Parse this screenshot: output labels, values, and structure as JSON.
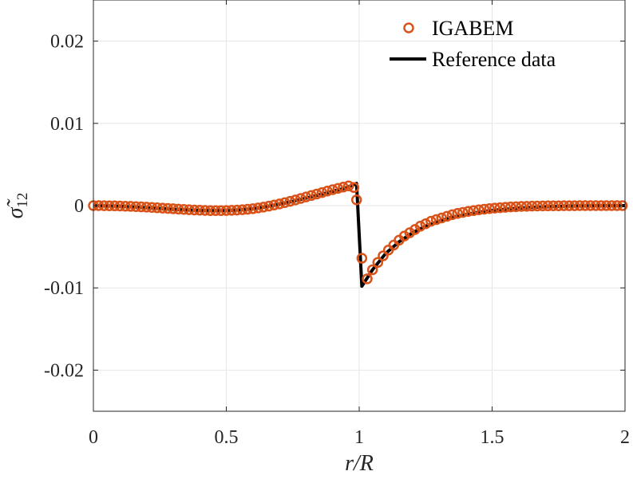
{
  "chart_data": {
    "type": "line",
    "xlabel": "r/R",
    "ylabel": "σ̃12",
    "xlim": [
      0,
      2
    ],
    "ylim": [
      -0.025,
      0.025
    ],
    "xticks": [
      0,
      0.5,
      1,
      1.5,
      2
    ],
    "xtick_labels": [
      "0",
      "0.5",
      "1",
      "1.5",
      "2"
    ],
    "yticks": [
      -0.02,
      -0.01,
      0,
      0.01,
      0.02
    ],
    "ytick_labels": [
      "-0.02",
      "-0.01",
      "0",
      "0.01",
      "0.02"
    ],
    "grid": true,
    "legend_position": "top-right",
    "series": [
      {
        "name": "IGABEM",
        "style": "markers",
        "color": "#D95319",
        "x": [
          0.0,
          0.02,
          0.04,
          0.06,
          0.08,
          0.1,
          0.12,
          0.14,
          0.16,
          0.18,
          0.2,
          0.22,
          0.24,
          0.26,
          0.28,
          0.3,
          0.32,
          0.34,
          0.36,
          0.38,
          0.4,
          0.42,
          0.44,
          0.46,
          0.48,
          0.5,
          0.52,
          0.54,
          0.56,
          0.58,
          0.6,
          0.62,
          0.64,
          0.66,
          0.68,
          0.7,
          0.72,
          0.74,
          0.76,
          0.78,
          0.8,
          0.82,
          0.84,
          0.86,
          0.88,
          0.9,
          0.92,
          0.94,
          0.96,
          0.98,
          0.99,
          1.01,
          1.03,
          1.05,
          1.07,
          1.09,
          1.11,
          1.13,
          1.15,
          1.17,
          1.19,
          1.21,
          1.23,
          1.25,
          1.27,
          1.29,
          1.31,
          1.33,
          1.35,
          1.37,
          1.39,
          1.41,
          1.43,
          1.45,
          1.47,
          1.49,
          1.51,
          1.53,
          1.55,
          1.57,
          1.59,
          1.61,
          1.63,
          1.65,
          1.67,
          1.69,
          1.71,
          1.73,
          1.75,
          1.77,
          1.79,
          1.81,
          1.83,
          1.85,
          1.87,
          1.89,
          1.91,
          1.93,
          1.95,
          1.97,
          1.99
        ],
        "y": [
          0.0,
          0.0,
          -1e-05,
          -2e-05,
          -3e-05,
          -5e-05,
          -7e-05,
          -9e-05,
          -0.00012,
          -0.00015,
          -0.00018,
          -0.00022,
          -0.00026,
          -0.0003,
          -0.00034,
          -0.00038,
          -0.00042,
          -0.00046,
          -0.0005,
          -0.00053,
          -0.00056,
          -0.00058,
          -0.0006,
          -0.0006,
          -0.0006,
          -0.00059,
          -0.00057,
          -0.00054,
          -0.0005,
          -0.00044,
          -0.00037,
          -0.00028,
          -0.00018,
          -6e-05,
          7e-05,
          0.00021,
          0.00036,
          0.00052,
          0.00069,
          0.00087,
          0.00105,
          0.00123,
          0.00141,
          0.00159,
          0.00177,
          0.00194,
          0.0021,
          0.00225,
          0.0024,
          0.0022,
          0.0007,
          -0.0064,
          -0.0089,
          -0.0078,
          -0.0069,
          -0.0061,
          -0.0054,
          -0.0048,
          -0.0042,
          -0.0037,
          -0.0033,
          -0.0029,
          -0.0025,
          -0.0022,
          -0.0019,
          -0.0017,
          -0.0015,
          -0.0013,
          -0.0011,
          -0.00095,
          -0.00082,
          -0.0007,
          -0.0006,
          -0.00051,
          -0.00043,
          -0.00036,
          -0.0003,
          -0.00025,
          -0.0002,
          -0.00016,
          -0.00013,
          -0.0001,
          -8e-05,
          -6e-05,
          -5e-05,
          -4e-05,
          -3e-05,
          -2e-05,
          -2e-05,
          -1e-05,
          -1e-05,
          -1e-05,
          0.0,
          0.0,
          0.0,
          0.0,
          0.0,
          0.0,
          0.0,
          0.0,
          0.0
        ]
      },
      {
        "name": "Reference data",
        "style": "line",
        "color": "#000000",
        "x": [
          0.0,
          0.1,
          0.2,
          0.3,
          0.4,
          0.5,
          0.55,
          0.6,
          0.65,
          0.7,
          0.75,
          0.8,
          0.85,
          0.9,
          0.95,
          0.99,
          1.01,
          1.05,
          1.1,
          1.15,
          1.2,
          1.25,
          1.3,
          1.35,
          1.4,
          1.45,
          1.5,
          1.6,
          1.7,
          1.8,
          1.9,
          2.0
        ],
        "y": [
          0.0,
          -7e-05,
          -0.00025,
          -0.00045,
          -0.00059,
          -0.0006,
          -0.00052,
          -0.00037,
          -0.00013,
          0.00017,
          0.00052,
          0.00091,
          0.00132,
          0.00174,
          0.00215,
          0.0027,
          -0.0098,
          -0.0078,
          -0.0058,
          -0.0044,
          -0.0033,
          -0.0025,
          -0.0019,
          -0.0014,
          -0.0011,
          -0.0008,
          -0.00058,
          -0.0003,
          -0.00014,
          -5e-05,
          -1e-05,
          0.0
        ]
      }
    ]
  }
}
